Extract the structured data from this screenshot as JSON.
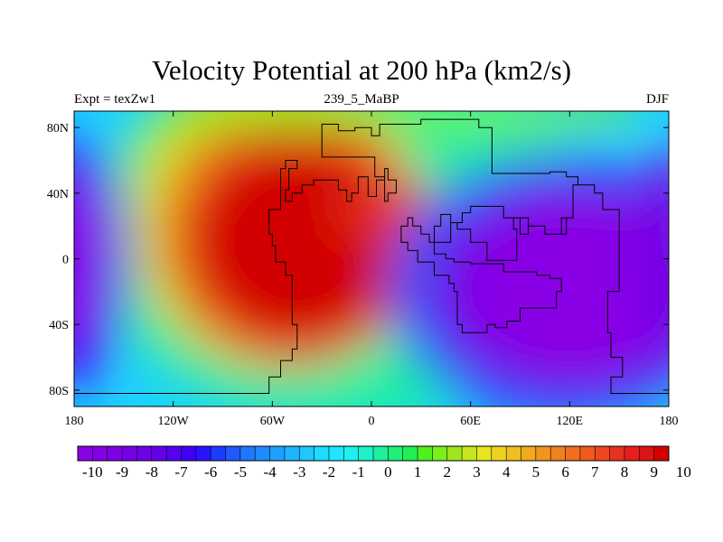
{
  "title": "Velocity Potential at 200 hPa (km2/s)",
  "left_string": "Expt = texZw1",
  "center_string": "239_5_MaBP",
  "right_string": "DJF",
  "map": {
    "lon_range": [
      -180,
      180
    ],
    "lat_range": [
      -90,
      90
    ],
    "y_ticks": [
      {
        "label": "80N",
        "lat": 80
      },
      {
        "label": "40N",
        "lat": 40
      },
      {
        "label": "0",
        "lat": 0
      },
      {
        "label": "40S",
        "lat": -40
      },
      {
        "label": "80S",
        "lat": -80
      }
    ],
    "x_ticks": [
      {
        "label": "180",
        "lon": -180
      },
      {
        "label": "120W",
        "lon": -120
      },
      {
        "label": "60W",
        "lon": -60
      },
      {
        "label": "0",
        "lon": 0
      },
      {
        "label": "60E",
        "lon": 60
      },
      {
        "label": "120E",
        "lon": 120
      },
      {
        "label": "180",
        "lon": 180
      }
    ],
    "field_features": [
      {
        "name": "positive-maximum",
        "lon": -45,
        "lat": 10,
        "value": 10
      },
      {
        "name": "negative-minimum",
        "lon": 120,
        "lat": -15,
        "value": -10
      },
      {
        "name": "negative-secondary",
        "lon": -175,
        "lat": -10,
        "value": -10
      }
    ],
    "coastline": [
      [
        -180,
        -82
      ],
      [
        -62,
        -82
      ],
      [
        -62,
        -72
      ],
      [
        -55,
        -72
      ],
      [
        -55,
        -62
      ],
      [
        -48,
        -62
      ],
      [
        -48,
        -55
      ],
      [
        -45,
        -55
      ],
      [
        -45,
        -40
      ],
      [
        -48,
        -40
      ],
      [
        -48,
        -10
      ],
      [
        -52,
        -10
      ],
      [
        -52,
        -2
      ],
      [
        -58,
        -2
      ],
      [
        -58,
        8
      ],
      [
        -60,
        8
      ],
      [
        -60,
        15
      ],
      [
        -62,
        15
      ],
      [
        -62,
        30
      ],
      [
        -55,
        30
      ],
      [
        -55,
        55
      ],
      [
        -52,
        55
      ],
      [
        -52,
        60
      ],
      [
        -45,
        60
      ],
      [
        -45,
        55
      ],
      [
        -50,
        55
      ],
      [
        -50,
        42
      ],
      [
        -52,
        42
      ],
      [
        -52,
        35
      ],
      [
        -48,
        35
      ],
      [
        -48,
        40
      ],
      [
        -42,
        40
      ],
      [
        -42,
        45
      ],
      [
        -35,
        45
      ],
      [
        -35,
        48
      ],
      [
        -20,
        48
      ],
      [
        -20,
        42
      ],
      [
        -15,
        42
      ],
      [
        -15,
        35
      ],
      [
        -12,
        35
      ],
      [
        -12,
        40
      ],
      [
        -8,
        40
      ],
      [
        -8,
        50
      ],
      [
        -2,
        50
      ],
      [
        -2,
        38
      ],
      [
        3,
        38
      ],
      [
        3,
        48
      ],
      [
        8,
        48
      ],
      [
        8,
        55
      ],
      [
        10,
        55
      ],
      [
        10,
        48
      ],
      [
        15,
        48
      ],
      [
        15,
        40
      ],
      [
        10,
        40
      ],
      [
        10,
        35
      ],
      [
        8,
        35
      ],
      [
        8,
        50
      ],
      [
        2,
        50
      ],
      [
        2,
        62
      ],
      [
        -30,
        62
      ],
      [
        -30,
        82
      ],
      [
        -20,
        82
      ],
      [
        -20,
        78
      ],
      [
        -10,
        78
      ],
      [
        -10,
        80
      ],
      [
        0,
        80
      ],
      [
        0,
        75
      ],
      [
        5,
        75
      ],
      [
        5,
        82
      ],
      [
        30,
        82
      ],
      [
        30,
        85
      ],
      [
        65,
        85
      ],
      [
        65,
        80
      ],
      [
        73,
        80
      ],
      [
        73,
        52
      ],
      [
        108,
        52
      ],
      [
        108,
        53
      ],
      [
        118,
        53
      ],
      [
        118,
        50
      ],
      [
        125,
        50
      ],
      [
        125,
        45
      ],
      [
        122,
        45
      ],
      [
        122,
        25
      ],
      [
        118,
        25
      ],
      [
        118,
        15
      ],
      [
        105,
        15
      ],
      [
        105,
        20
      ],
      [
        95,
        20
      ],
      [
        95,
        25
      ],
      [
        86,
        25
      ],
      [
        86,
        18
      ],
      [
        88,
        18
      ],
      [
        88,
        -1
      ],
      [
        70,
        -1
      ],
      [
        70,
        10
      ],
      [
        60,
        10
      ],
      [
        60,
        18
      ],
      [
        52,
        18
      ],
      [
        52,
        22
      ],
      [
        48,
        22
      ],
      [
        48,
        27
      ],
      [
        42,
        27
      ],
      [
        42,
        20
      ],
      [
        38,
        20
      ],
      [
        38,
        3
      ],
      [
        45,
        3
      ],
      [
        45,
        0
      ],
      [
        50,
        0
      ],
      [
        50,
        -2
      ],
      [
        60,
        -2
      ],
      [
        60,
        -3
      ],
      [
        80,
        -3
      ],
      [
        80,
        -8
      ],
      [
        100,
        -8
      ],
      [
        100,
        -10
      ],
      [
        108,
        -10
      ],
      [
        108,
        -12
      ],
      [
        115,
        -12
      ],
      [
        115,
        -20
      ],
      [
        112,
        -20
      ],
      [
        112,
        -30
      ],
      [
        90,
        -30
      ],
      [
        90,
        -38
      ],
      [
        82,
        -38
      ],
      [
        82,
        -42
      ],
      [
        75,
        -42
      ],
      [
        75,
        -40
      ],
      [
        70,
        -40
      ],
      [
        70,
        -45
      ],
      [
        55,
        -45
      ],
      [
        55,
        -40
      ],
      [
        52,
        -40
      ],
      [
        52,
        -20
      ],
      [
        50,
        -20
      ],
      [
        50,
        -15
      ],
      [
        47,
        -15
      ],
      [
        47,
        -10
      ],
      [
        38,
        -10
      ],
      [
        38,
        -2
      ],
      [
        28,
        -2
      ],
      [
        28,
        5
      ],
      [
        22,
        5
      ],
      [
        22,
        10
      ],
      [
        18,
        10
      ],
      [
        18,
        20
      ],
      [
        22,
        20
      ],
      [
        22,
        25
      ],
      [
        25,
        25
      ],
      [
        25,
        20
      ],
      [
        30,
        20
      ],
      [
        30,
        15
      ],
      [
        35,
        15
      ],
      [
        35,
        10
      ],
      [
        48,
        10
      ],
      [
        48,
        22
      ],
      [
        55,
        22
      ],
      [
        55,
        28
      ],
      [
        60,
        28
      ],
      [
        60,
        32
      ],
      [
        80,
        32
      ],
      [
        80,
        25
      ],
      [
        90,
        25
      ],
      [
        90,
        15
      ],
      [
        95,
        15
      ],
      [
        95,
        20
      ],
      [
        105,
        20
      ],
      [
        105,
        15
      ],
      [
        115,
        15
      ],
      [
        115,
        25
      ],
      [
        122,
        25
      ],
      [
        122,
        45
      ],
      [
        135,
        45
      ],
      [
        135,
        40
      ],
      [
        140,
        40
      ],
      [
        140,
        30
      ],
      [
        150,
        30
      ],
      [
        150,
        -20
      ],
      [
        143,
        -20
      ],
      [
        143,
        -45
      ],
      [
        145,
        -45
      ],
      [
        145,
        -60
      ],
      [
        152,
        -60
      ],
      [
        152,
        -72
      ],
      [
        145,
        -72
      ],
      [
        145,
        -82
      ],
      [
        180,
        -82
      ]
    ]
  },
  "colorbar": {
    "labels": [
      "-10",
      "-9",
      "-8",
      "-7",
      "-6",
      "-5",
      "-4",
      "-3",
      "-2",
      "-1",
      "0",
      "1",
      "2",
      "3",
      "4",
      "5",
      "6",
      "7",
      "8",
      "9",
      "10"
    ],
    "colors": [
      "#8a00e6",
      "#8400e6",
      "#7d00e6",
      "#7600e6",
      "#6e00e6",
      "#6600e6",
      "#5700f0",
      "#4000f8",
      "#2814ff",
      "#1e3cff",
      "#1e5aff",
      "#1e78ff",
      "#1e8cff",
      "#1ea0ff",
      "#1eb4ff",
      "#1ec8ff",
      "#1edcff",
      "#1ee6ff",
      "#1ef0f0",
      "#1ef0c8",
      "#1ef0a0",
      "#1ef078",
      "#1ef050",
      "#50f01e",
      "#78f01e",
      "#a0e61e",
      "#c8e61e",
      "#e6e61e",
      "#f0d21e",
      "#f0be1e",
      "#f0aa1e",
      "#f0961e",
      "#f0821e",
      "#f06e1e",
      "#f05a1e",
      "#f0461e",
      "#e6321e",
      "#e61e1e",
      "#dc1414",
      "#d20000"
    ]
  }
}
